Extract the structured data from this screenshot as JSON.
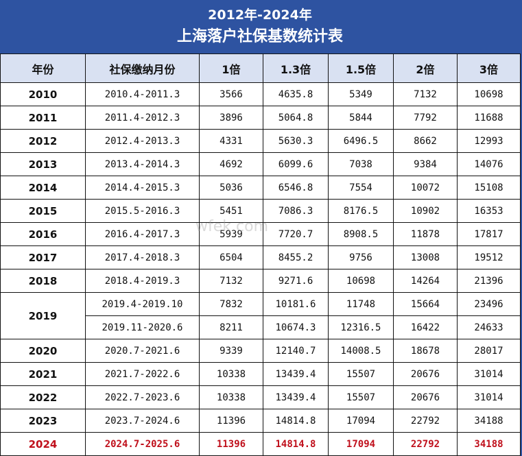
{
  "title": {
    "line1": "2012年-2024年",
    "line2": "上海落户社保基数统计表"
  },
  "colors": {
    "header_bg": "#2e53a1",
    "column_header_bg": "#d9e1f2",
    "highlight": "#c0101c"
  },
  "watermark": "www.wfek.com",
  "columns": [
    "年份",
    "社保缴纳月份",
    "1倍",
    "1.3倍",
    "1.5倍",
    "2倍",
    "3倍"
  ],
  "rows": [
    {
      "year": "2010",
      "period": "2010.4-2011.3",
      "v": [
        "3566",
        "4635.8",
        "5349",
        "7132",
        "10698"
      ]
    },
    {
      "year": "2011",
      "period": "2011.4-2012.3",
      "v": [
        "3896",
        "5064.8",
        "5844",
        "7792",
        "11688"
      ]
    },
    {
      "year": "2012",
      "period": "2012.4-2013.3",
      "v": [
        "4331",
        "5630.3",
        "6496.5",
        "8662",
        "12993"
      ]
    },
    {
      "year": "2013",
      "period": "2013.4-2014.3",
      "v": [
        "4692",
        "6099.6",
        "7038",
        "9384",
        "14076"
      ]
    },
    {
      "year": "2014",
      "period": "2014.4-2015.3",
      "v": [
        "5036",
        "6546.8",
        "7554",
        "10072",
        "15108"
      ]
    },
    {
      "year": "2015",
      "period": "2015.5-2016.3",
      "v": [
        "5451",
        "7086.3",
        "8176.5",
        "10902",
        "16353"
      ]
    },
    {
      "year": "2016",
      "period": "2016.4-2017.3",
      "v": [
        "5939",
        "7720.7",
        "8908.5",
        "11878",
        "17817"
      ]
    },
    {
      "year": "2017",
      "period": "2017.4-2018.3",
      "v": [
        "6504",
        "8455.2",
        "9756",
        "13008",
        "19512"
      ]
    },
    {
      "year": "2018",
      "period": "2018.4-2019.3",
      "v": [
        "7132",
        "9271.6",
        "10698",
        "14264",
        "21396"
      ]
    },
    {
      "year": "2019",
      "period": "2019.4-2019.10",
      "v": [
        "7832",
        "10181.6",
        "11748",
        "15664",
        "23496"
      ]
    },
    {
      "year": "",
      "period": "2019.11-2020.6",
      "v": [
        "8211",
        "10674.3",
        "12316.5",
        "16422",
        "24633"
      ]
    },
    {
      "year": "2020",
      "period": "2020.7-2021.6",
      "v": [
        "9339",
        "12140.7",
        "14008.5",
        "18678",
        "28017"
      ]
    },
    {
      "year": "2021",
      "period": "2021.7-2022.6",
      "v": [
        "10338",
        "13439.4",
        "15507",
        "20676",
        "31014"
      ]
    },
    {
      "year": "2022",
      "period": "2022.7-2023.6",
      "v": [
        "10338",
        "13439.4",
        "15507",
        "20676",
        "31014"
      ]
    },
    {
      "year": "2023",
      "period": "2023.7-2024.6",
      "v": [
        "11396",
        "14814.8",
        "17094",
        "22792",
        "34188"
      ]
    },
    {
      "year": "2024",
      "period": "2024.7-2025.6",
      "v": [
        "11396",
        "14814.8",
        "17094",
        "22792",
        "34188"
      ],
      "highlight": true
    }
  ]
}
